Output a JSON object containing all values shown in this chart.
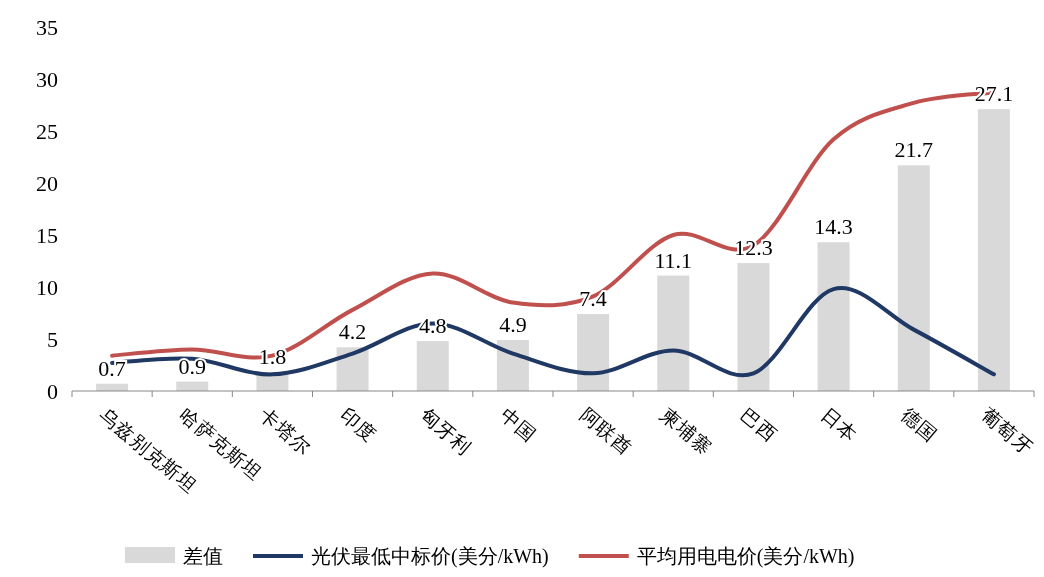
{
  "chart_data": {
    "type": "bar",
    "categories": [
      "乌兹别克斯坦",
      "哈萨克斯坦",
      "卡塔尔",
      "印度",
      "匈牙利",
      "中国",
      "阿联酋",
      "柬埔寨",
      "巴西",
      "日本",
      "德国",
      "葡萄牙"
    ],
    "ylim": [
      0,
      35
    ],
    "yticks": [
      0,
      5,
      10,
      15,
      20,
      25,
      30,
      35
    ],
    "legend": "bottom",
    "series": [
      {
        "name": "差值",
        "color": "#d9d9d9",
        "values": [
          0.7,
          0.9,
          1.8,
          4.2,
          4.8,
          4.9,
          7.4,
          11.1,
          12.3,
          14.3,
          21.7,
          27.1
        ],
        "value_labels": [
          "0.7",
          "0.9",
          "1.8",
          "4.2",
          "4.8",
          "4.9",
          "7.4",
          "11.1",
          "12.3",
          "14.3",
          "21.7",
          "27.1"
        ]
      },
      {
        "name": "光伏最低中标价(美分/kWh)",
        "type": "line",
        "color": "#1f3864",
        "values": [
          2.7,
          3.1,
          1.6,
          3.6,
          6.5,
          3.6,
          1.7,
          3.9,
          1.7,
          9.8,
          5.9,
          1.6
        ]
      },
      {
        "name": "平均用电电价(美分/kWh)",
        "type": "line",
        "color": "#c0504d",
        "values": [
          3.4,
          4.0,
          3.4,
          7.8,
          11.3,
          8.5,
          9.1,
          15.0,
          14.0,
          24.2,
          27.7,
          28.7
        ]
      }
    ]
  }
}
